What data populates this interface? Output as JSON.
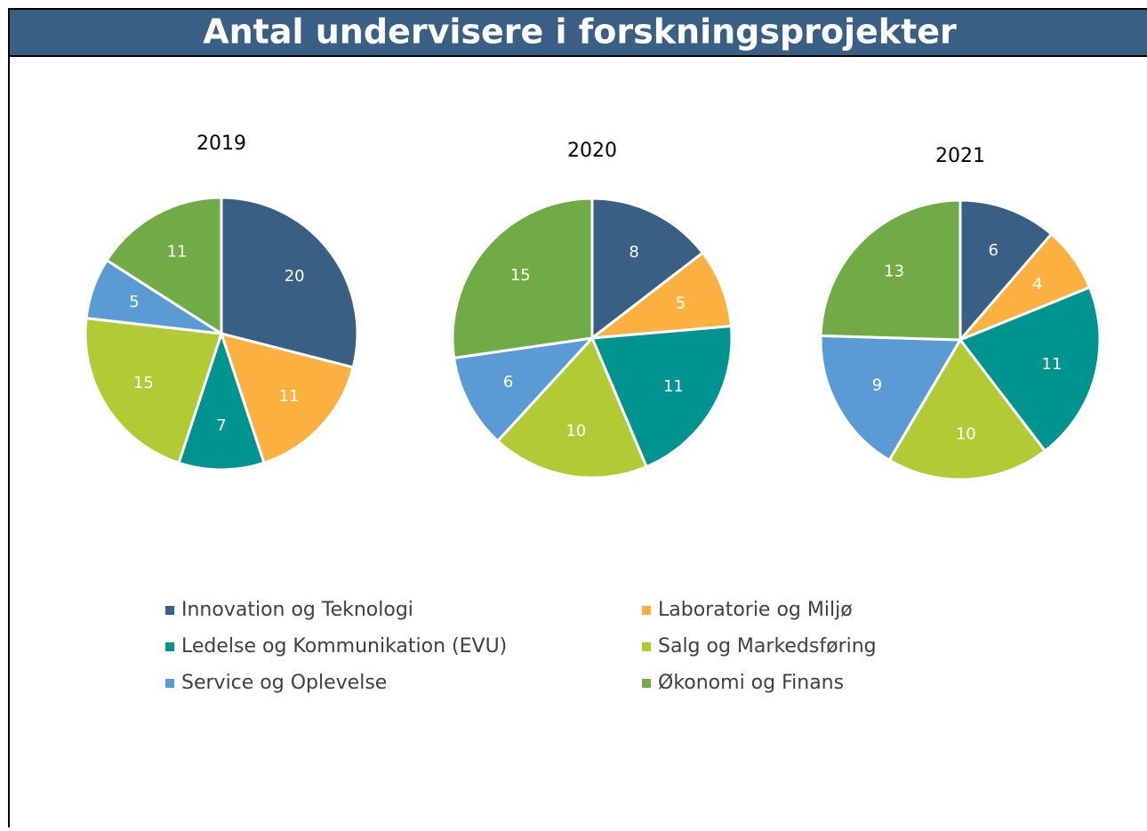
{
  "title": "Antal undervisere i forskningsprojekter",
  "chart_data": [
    {
      "type": "pie",
      "title": "2019",
      "categories": [
        "Innovation og Teknologi",
        "Laboratorie og Miljø",
        "Ledelse og Kommunikation (EVU)",
        "Salg og Markedsføring",
        "Service og Oplevelse",
        "Økonomi og Finans"
      ],
      "values": [
        20,
        11,
        7,
        15,
        5,
        11
      ],
      "colors": [
        "#3a5f85",
        "#fbb040",
        "#009490",
        "#b2cb35",
        "#5b9bd5",
        "#70ab46"
      ]
    },
    {
      "type": "pie",
      "title": "2020",
      "categories": [
        "Innovation og Teknologi",
        "Laboratorie og Miljø",
        "Ledelse og Kommunikation (EVU)",
        "Salg og Markedsføring",
        "Service og Oplevelse",
        "Økonomi og Finans"
      ],
      "values": [
        8,
        5,
        11,
        10,
        6,
        15
      ],
      "colors": [
        "#3a5f85",
        "#fbb040",
        "#009490",
        "#b2cb35",
        "#5b9bd5",
        "#70ab46"
      ]
    },
    {
      "type": "pie",
      "title": "2021",
      "categories": [
        "Innovation og Teknologi",
        "Laboratorie og Miljø",
        "Ledelse og Kommunikation (EVU)",
        "Salg og Markedsføring",
        "Service og Oplevelse",
        "Økonomi og Finans"
      ],
      "values": [
        6,
        4,
        11,
        10,
        9,
        13
      ],
      "colors": [
        "#3a5f85",
        "#fbb040",
        "#009490",
        "#b2cb35",
        "#5b9bd5",
        "#70ab46"
      ]
    }
  ]
}
